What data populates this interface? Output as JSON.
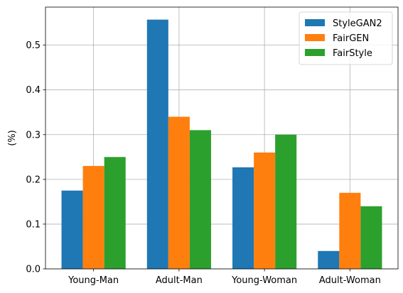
{
  "chart_data": {
    "type": "bar",
    "title": "",
    "xlabel": "",
    "ylabel": "(%)",
    "categories": [
      "Young-Man",
      "Adult-Man",
      "Young-Woman",
      "Adult-Woman"
    ],
    "series": [
      {
        "name": "StyleGAN2",
        "color": "#1f77b4",
        "values": [
          0.175,
          0.557,
          0.227,
          0.04
        ]
      },
      {
        "name": "FairGEN",
        "color": "#ff7f0e",
        "values": [
          0.23,
          0.34,
          0.26,
          0.17
        ]
      },
      {
        "name": "FairStyle",
        "color": "#2ca02c",
        "values": [
          0.25,
          0.31,
          0.3,
          0.14
        ]
      }
    ],
    "ylim": [
      0,
      0.585
    ],
    "yticks": [
      0.0,
      0.1,
      0.2,
      0.3,
      0.4,
      0.5
    ],
    "ytick_labels": [
      "0.0",
      "0.1",
      "0.2",
      "0.3",
      "0.4",
      "0.5"
    ],
    "grid": true,
    "legend_position": "top-right"
  }
}
